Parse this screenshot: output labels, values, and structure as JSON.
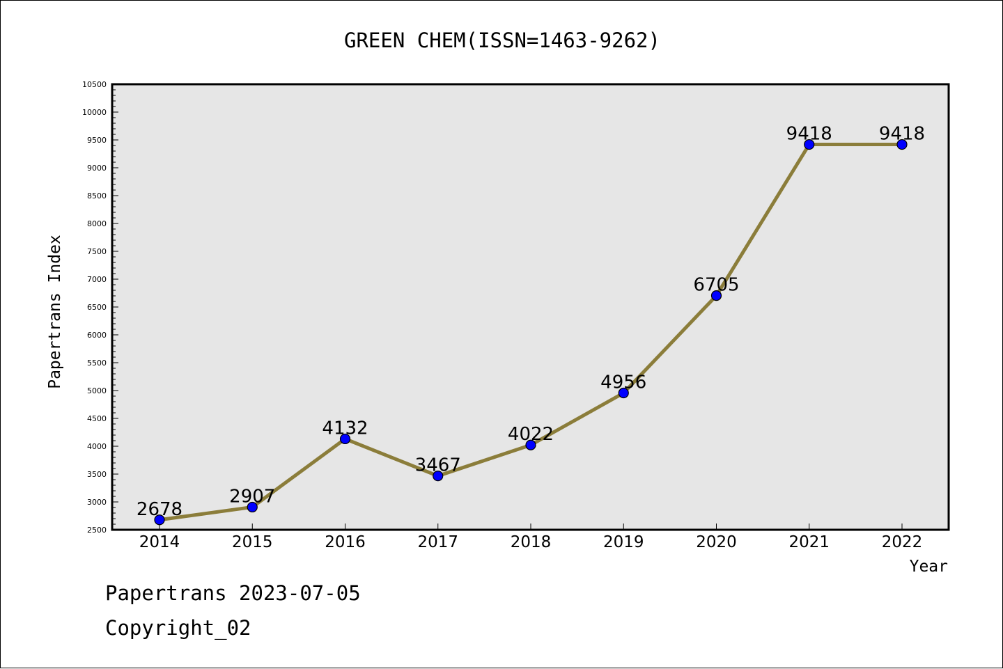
{
  "chart_data": {
    "type": "line",
    "title": "GREEN CHEM(ISSN=1463-9262)",
    "xlabel": "Year",
    "ylabel": "Papertrans Index",
    "categories": [
      "2014",
      "2015",
      "2016",
      "2017",
      "2018",
      "2019",
      "2020",
      "2021",
      "2022"
    ],
    "series": [
      {
        "values": [
          2678,
          2907,
          4132,
          3467,
          4022,
          4956,
          6705,
          9418,
          9418
        ],
        "labels": [
          "2678",
          "2907",
          "4132",
          "3467",
          "4022",
          "4956",
          "6705",
          "9418",
          "9418"
        ]
      }
    ],
    "ylim": [
      2500,
      10500
    ],
    "yticks": [
      "2500",
      "3000",
      "3500",
      "4000",
      "4500",
      "5000",
      "5500",
      "6000",
      "6500",
      "7000",
      "7500",
      "8000",
      "8500",
      "9000",
      "9500",
      "10000",
      "10500"
    ],
    "grid": false,
    "legend": "none",
    "colors": {
      "line": "#8b7d3a",
      "marker": "#0000ff",
      "plot_background": "#e6e6e6",
      "axes": "#000000"
    }
  },
  "footer": {
    "date_line": "Papertrans 2023-07-05",
    "copyright_line": "Copyright_02"
  }
}
